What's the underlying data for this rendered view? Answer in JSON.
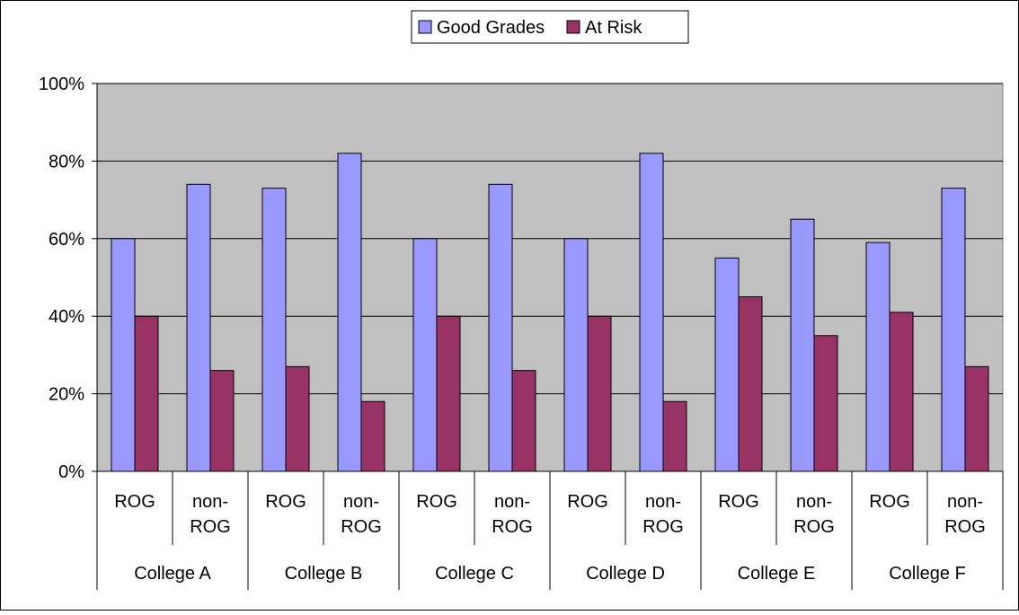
{
  "chart_data": {
    "type": "bar",
    "legend_position": "top",
    "grid": true,
    "ylim": [
      0,
      100
    ],
    "yticks": [
      0,
      20,
      40,
      60,
      80,
      100
    ],
    "ytick_labels": [
      "0%",
      "20%",
      "40%",
      "60%",
      "80%",
      "100%"
    ],
    "groups": [
      "College A",
      "College B",
      "College C",
      "College D",
      "College E",
      "College F"
    ],
    "subcategories": [
      "ROG",
      "non-ROG"
    ],
    "sublabel_lines": {
      "ROG": [
        "ROG"
      ],
      "non-ROG": [
        "non-",
        "ROG"
      ]
    },
    "series": [
      {
        "name": "Good Grades",
        "color": "#9999FF",
        "values": [
          60,
          74,
          73,
          82,
          60,
          74,
          60,
          82,
          55,
          65,
          59,
          73
        ]
      },
      {
        "name": "At Risk",
        "color": "#993366",
        "values": [
          40,
          26,
          27,
          18,
          40,
          26,
          40,
          18,
          45,
          35,
          41,
          27
        ]
      }
    ],
    "plot_background": "#C0C0C0"
  }
}
